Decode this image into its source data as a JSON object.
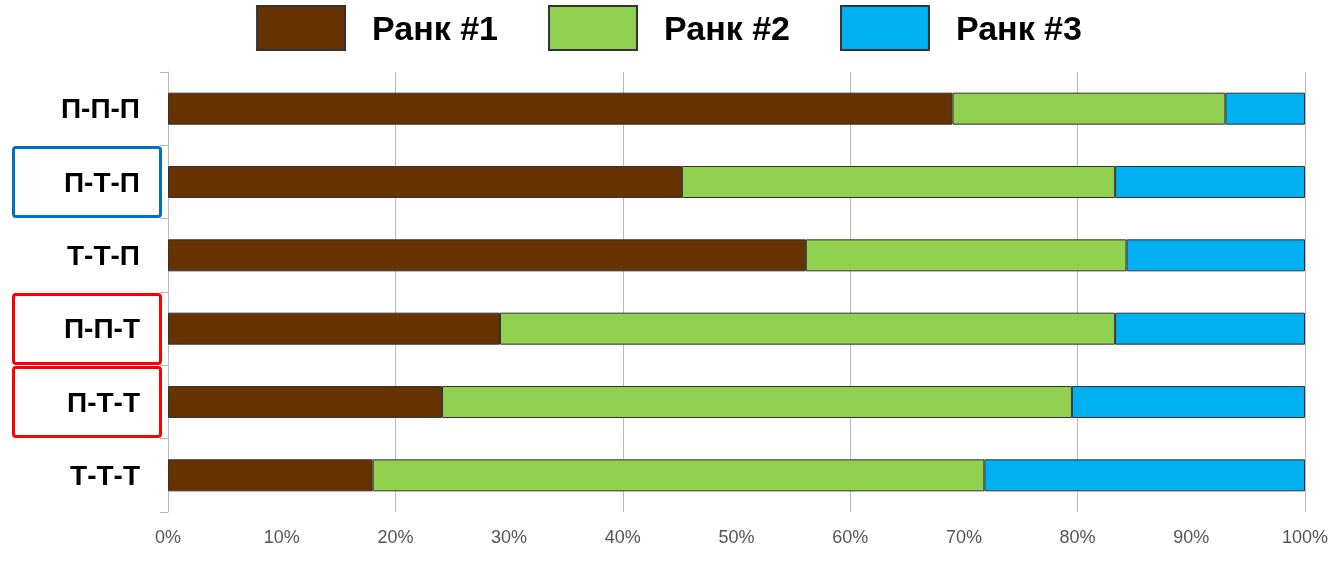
{
  "chart_data": {
    "type": "bar",
    "orientation": "horizontal",
    "stacked": true,
    "categories": [
      "П-П-П",
      "П-Т-П",
      "Т-Т-П",
      "П-П-Т",
      "П-Т-Т",
      "Т-Т-Т"
    ],
    "series": [
      {
        "name": "Ранк #1",
        "color": "#663300",
        "values": [
          69.0,
          45.2,
          56.1,
          29.2,
          24.1,
          18.0
        ]
      },
      {
        "name": "Ранк #2",
        "color": "#92d050",
        "values": [
          24.0,
          38.1,
          28.2,
          54.1,
          55.4,
          53.8
        ]
      },
      {
        "name": "Ранк #3",
        "color": "#00b0f0",
        "values": [
          7.0,
          16.7,
          15.7,
          16.7,
          20.5,
          28.2
        ]
      }
    ],
    "xlim": [
      0,
      100
    ],
    "xticks": [
      {
        "value": 0,
        "label": "0%"
      },
      {
        "value": 10,
        "label": "10%"
      },
      {
        "value": 20,
        "label": "20%"
      },
      {
        "value": 30,
        "label": "30%"
      },
      {
        "value": 40,
        "label": "40%"
      },
      {
        "value": 50,
        "label": "50%"
      },
      {
        "value": 60,
        "label": "60%"
      },
      {
        "value": 70,
        "label": "70%"
      },
      {
        "value": 80,
        "label": "80%"
      },
      {
        "value": 90,
        "label": "90%"
      },
      {
        "value": 100,
        "label": "100%"
      }
    ],
    "grid": "x",
    "legend": "top"
  }
}
